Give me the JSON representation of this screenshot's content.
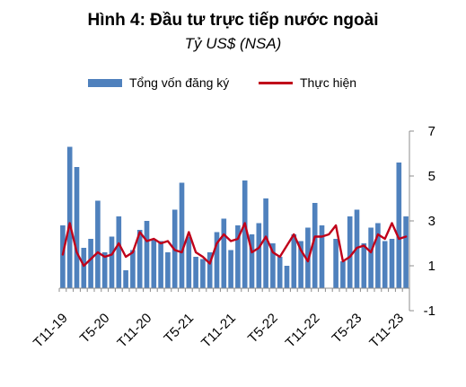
{
  "chart_data": {
    "type": "bar",
    "title": "Hình 4: Đầu tư trực tiếp nước ngoài",
    "subtitle": "Tỷ US$ (NSA)",
    "x_tick_labels": [
      "T11-19",
      "T5-20",
      "T11-20",
      "T5-21",
      "T11-21",
      "T5-22",
      "T11-22",
      "T5-23",
      "T11-23"
    ],
    "y_tick_labels": [
      "7",
      "5",
      "3",
      "1",
      "-1"
    ],
    "ylim": [
      -1,
      7
    ],
    "grid": false,
    "legend_position": "top",
    "categories": [
      "T11-19",
      "T12-19",
      "T1-20",
      "T2-20",
      "T3-20",
      "T4-20",
      "T5-20",
      "T6-20",
      "T7-20",
      "T8-20",
      "T9-20",
      "T10-20",
      "T11-20",
      "T12-20",
      "T1-21",
      "T2-21",
      "T3-21",
      "T4-21",
      "T5-21",
      "T6-21",
      "T7-21",
      "T8-21",
      "T9-21",
      "T10-21",
      "T11-21",
      "T12-21",
      "T1-22",
      "T2-22",
      "T3-22",
      "T4-22",
      "T5-22",
      "T6-22",
      "T7-22",
      "T8-22",
      "T9-22",
      "T10-22",
      "T11-22",
      "T12-22",
      "T1-23",
      "T2-23",
      "T3-23",
      "T4-23",
      "T5-23",
      "T6-23",
      "T7-23",
      "T8-23",
      "T9-23",
      "T10-23",
      "T11-23",
      "T12-23"
    ],
    "series": [
      {
        "name": "Tổng vốn đăng ký",
        "type": "bar",
        "color": "#4f81bd",
        "values": [
          2.8,
          6.3,
          5.4,
          1.8,
          2.2,
          3.9,
          1.6,
          2.3,
          3.2,
          0.8,
          1.7,
          2.6,
          3.0,
          2.2,
          2.1,
          1.6,
          3.5,
          4.7,
          2.3,
          1.4,
          1.3,
          1.6,
          2.5,
          3.1,
          1.7,
          2.8,
          4.8,
          2.4,
          2.9,
          4.0,
          2.0,
          1.4,
          1.0,
          2.4,
          2.1,
          2.7,
          3.8,
          2.8,
          0.0,
          2.2,
          1.2,
          3.2,
          3.5,
          2.0,
          2.7,
          2.9,
          2.1,
          2.2,
          5.6,
          3.2
        ]
      },
      {
        "name": "Thực hiện",
        "type": "line",
        "color": "#c0001a",
        "values": [
          1.5,
          2.9,
          1.6,
          1.0,
          1.3,
          1.6,
          1.4,
          1.5,
          2.0,
          1.4,
          1.6,
          2.5,
          2.1,
          2.2,
          2.0,
          2.1,
          1.7,
          1.6,
          2.5,
          1.6,
          1.4,
          1.1,
          2.0,
          2.4,
          2.1,
          2.2,
          2.9,
          1.6,
          1.8,
          2.3,
          1.6,
          1.4,
          1.9,
          2.4,
          1.7,
          1.2,
          2.3,
          2.3,
          2.4,
          2.8,
          1.2,
          1.4,
          1.8,
          1.9,
          1.6,
          2.4,
          2.2,
          2.9,
          2.2,
          2.3
        ]
      }
    ]
  }
}
